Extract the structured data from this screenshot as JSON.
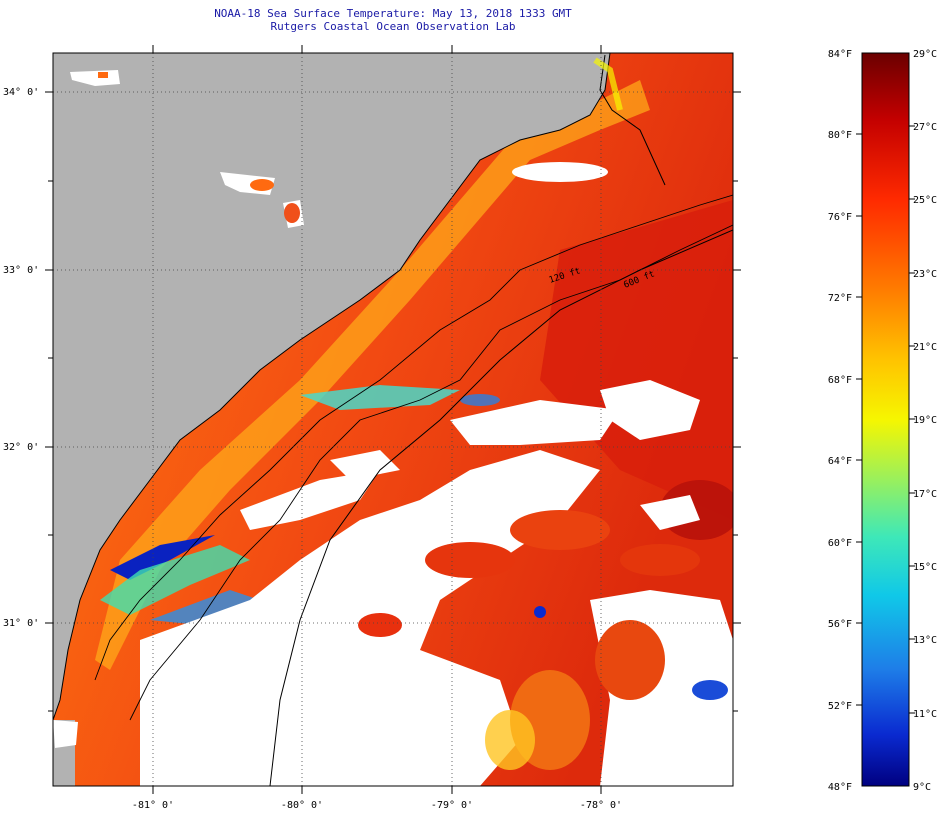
{
  "header": {
    "title": "NOAA-18 Sea Surface Temperature:  May 13, 2018 1333 GMT",
    "subtitle": "Rutgers Coastal Ocean Observation Lab"
  },
  "map": {
    "lat_labels": [
      "34° 0'",
      "33° 0'",
      "32° 0'",
      "31° 0'"
    ],
    "lon_labels": [
      "-81° 0'",
      "-80° 0'",
      "-79° 0'",
      "-78° 0'"
    ],
    "isobath_labels": [
      "120 ft",
      "600 ft"
    ],
    "colors": {
      "land": "#b2b2b2",
      "cloud": "#ffffff",
      "coastline": "#000000",
      "warm": "#ef3a12",
      "hot": "#cf1d0a",
      "orange": "#ff8c12",
      "nearshore": "#ffb81c",
      "cold": "#0a1ec8"
    }
  },
  "colorbar": {
    "fahrenheit_labels": [
      "84°F",
      "80°F",
      "76°F",
      "72°F",
      "68°F",
      "64°F",
      "60°F",
      "56°F",
      "52°F",
      "48°F"
    ],
    "celsius_labels": [
      "29°C",
      "27°C",
      "25°C",
      "23°C",
      "21°C",
      "19°C",
      "17°C",
      "15°C",
      "13°C",
      "11°C",
      "9°C"
    ],
    "gradient": [
      "#6b0000",
      "#c30000",
      "#ff2a00",
      "#ff7a00",
      "#ffc400",
      "#f6f600",
      "#9cf05a",
      "#3ee8b8",
      "#10c8e8",
      "#1e7ee8",
      "#0a2ad0",
      "#000080"
    ]
  }
}
